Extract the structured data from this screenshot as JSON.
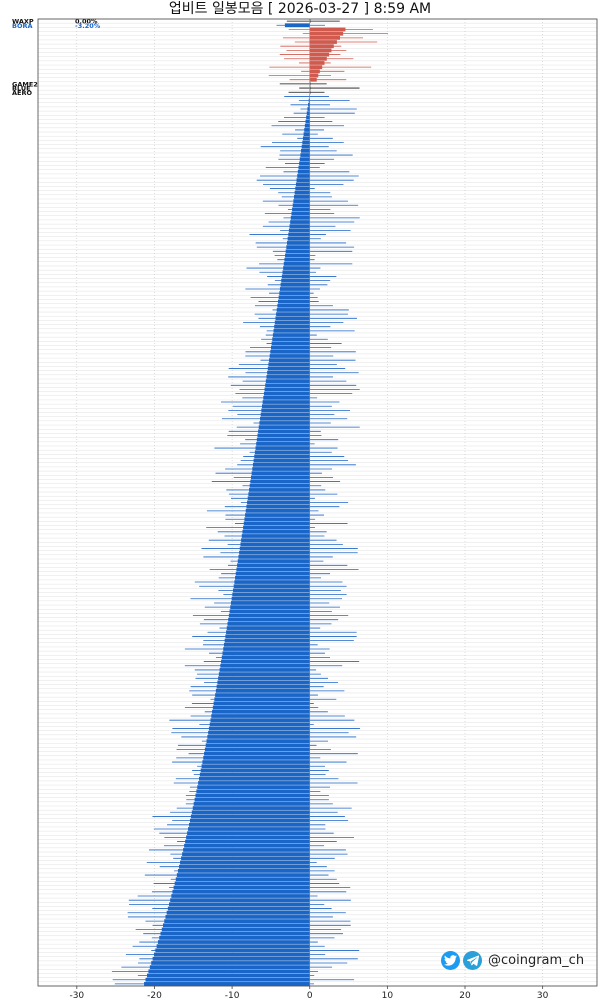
{
  "title": "업비트 일봉모음 [ 2026-03-27 ]  8:59 AM",
  "brand": {
    "handle": "@coingram_ch",
    "icons": [
      "twitter-icon",
      "telegram-icon"
    ]
  },
  "colors": {
    "positive": "#d05a4e",
    "negative": "#1a66c8",
    "neutral": "#111111",
    "wick": "#1a66c8",
    "grid": "#d4d4d4"
  },
  "chart_data": {
    "type": "bar",
    "title": "업비트 일봉모음 [ 2026-03-27 ]  8:59 AM",
    "xlim": [
      -35,
      37
    ],
    "xticks": [
      "-30",
      "-20",
      "-10",
      "0",
      "10",
      "20",
      "30"
    ],
    "grid": true,
    "orientation": "horizontal",
    "note": "Each row is a ticker with its daily change (%); thin lines show the daily high/low range",
    "labeled_rows": [
      {
        "name": "WAXP",
        "value": 0.0,
        "pct": "0.00%"
      },
      {
        "name": "BORA",
        "value": -3.2,
        "pct": "-3.20%"
      }
    ],
    "positive_values": [
      4.6,
      4.3,
      3.9,
      3.5,
      3.1,
      2.8,
      2.5,
      2.2,
      1.9,
      1.6,
      1.3,
      1.1,
      0.9
    ],
    "zero_names": [
      "GAME2",
      "BLUE",
      "AERO"
    ],
    "negative_count": 213,
    "negative_range": [
      -0.05,
      -21.34
    ],
    "min_value": -21.34
  }
}
